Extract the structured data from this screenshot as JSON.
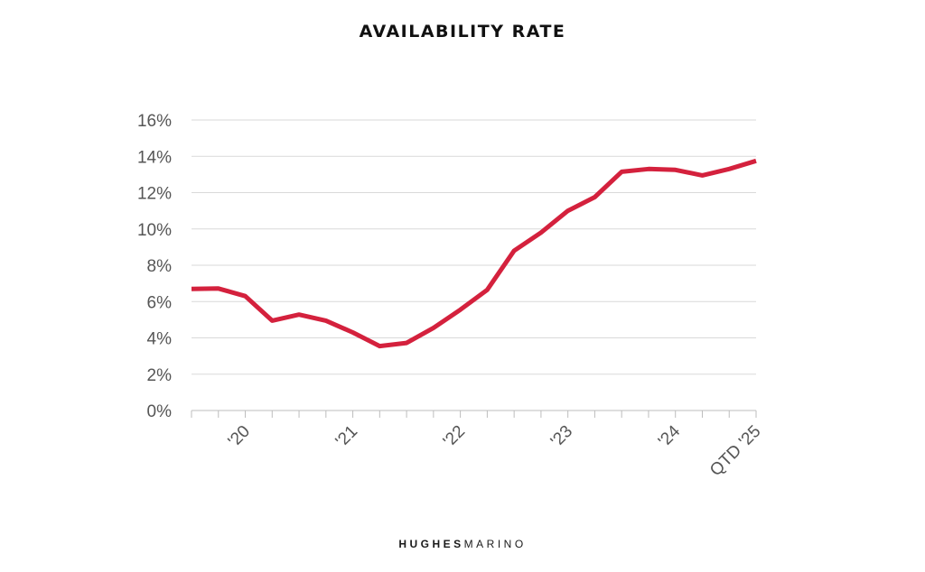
{
  "chart_data": {
    "type": "line",
    "title": "AVAILABILITY RATE",
    "xlabel": "",
    "ylabel": "",
    "ylim": [
      0,
      16
    ],
    "yticks": [
      "0%",
      "2%",
      "4%",
      "6%",
      "8%",
      "10%",
      "12%",
      "14%",
      "16%"
    ],
    "ytick_values": [
      0,
      2,
      4,
      6,
      8,
      10,
      12,
      14,
      16
    ],
    "xlim": [
      0,
      21
    ],
    "xtick_labels": [
      "'20",
      "'21",
      "'22",
      "'23",
      "'24",
      "QTD '25"
    ],
    "xtick_positions": [
      2,
      6,
      10,
      14,
      18,
      21
    ],
    "grid": true,
    "legend": "none",
    "series": [
      {
        "name": "Availability Rate",
        "color": "#d4213d",
        "x": [
          0,
          1,
          2,
          3,
          4,
          5,
          6,
          7,
          8,
          9,
          10,
          11,
          12,
          13,
          14,
          15,
          16,
          17,
          18,
          19,
          20,
          21
        ],
        "values": [
          6.7,
          6.72,
          6.3,
          4.95,
          5.28,
          4.95,
          4.3,
          3.55,
          3.72,
          4.55,
          5.55,
          6.65,
          8.8,
          9.8,
          11.0,
          11.75,
          13.15,
          13.3,
          13.25,
          12.95,
          13.3,
          13.75
        ]
      }
    ]
  },
  "brand": {
    "part1": "HUGHES",
    "part2": "MARINO"
  }
}
